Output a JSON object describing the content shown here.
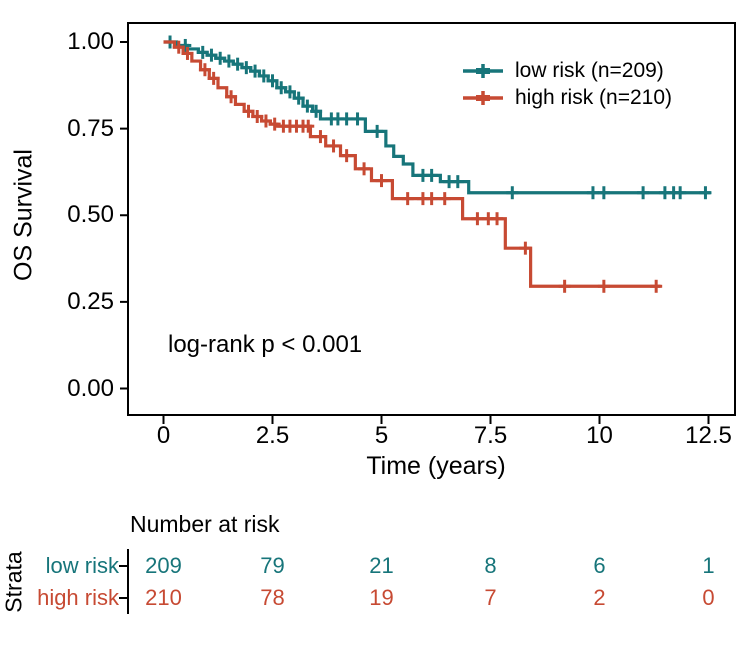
{
  "chart_data": {
    "type": "line",
    "subtype": "kaplan_meier_step",
    "title": "",
    "xlabel": "Time (years)",
    "ylabel": "OS Survival",
    "xlim": [
      0,
      12.5
    ],
    "ylim": [
      0,
      1
    ],
    "x_ticks": [
      0,
      2.5,
      5,
      7.5,
      10,
      12.5
    ],
    "x_tick_labels": [
      "0",
      "2.5",
      "5",
      "7.5",
      "10",
      "12.5"
    ],
    "y_ticks": [
      0,
      0.25,
      0.5,
      0.75,
      1
    ],
    "y_tick_labels": [
      "0.00",
      "0.25",
      "0.50",
      "0.75",
      "1.00"
    ],
    "grid": false,
    "legend_position": "inside-top-right",
    "annotation": "log-rank p < 0.001",
    "series": [
      {
        "name": "low risk (n=209)",
        "color": "#17757A",
        "end_time": 12.55,
        "steps": [
          [
            0,
            1.0
          ],
          [
            0.3,
            0.99
          ],
          [
            0.55,
            0.98
          ],
          [
            0.8,
            0.97
          ],
          [
            1.0,
            0.962
          ],
          [
            1.2,
            0.953
          ],
          [
            1.4,
            0.945
          ],
          [
            1.6,
            0.936
          ],
          [
            1.8,
            0.926
          ],
          [
            2.0,
            0.916
          ],
          [
            2.2,
            0.902
          ],
          [
            2.4,
            0.888
          ],
          [
            2.6,
            0.868
          ],
          [
            2.8,
            0.856
          ],
          [
            3.0,
            0.838
          ],
          [
            3.2,
            0.815
          ],
          [
            3.42,
            0.8
          ],
          [
            3.6,
            0.778
          ],
          [
            4.63,
            0.742
          ],
          [
            5.1,
            0.7
          ],
          [
            5.28,
            0.67
          ],
          [
            5.5,
            0.648
          ],
          [
            5.72,
            0.615
          ],
          [
            6.35,
            0.597
          ],
          [
            7.0,
            0.565
          ]
        ],
        "censors": [
          [
            0.15,
            1.0
          ],
          [
            0.5,
            0.99
          ],
          [
            0.9,
            0.97
          ],
          [
            1.1,
            0.962
          ],
          [
            1.3,
            0.953
          ],
          [
            1.5,
            0.945
          ],
          [
            1.7,
            0.936
          ],
          [
            1.9,
            0.926
          ],
          [
            2.1,
            0.916
          ],
          [
            2.3,
            0.902
          ],
          [
            2.5,
            0.888
          ],
          [
            2.7,
            0.868
          ],
          [
            2.9,
            0.856
          ],
          [
            3.1,
            0.838
          ],
          [
            3.3,
            0.815
          ],
          [
            3.5,
            0.8
          ],
          [
            3.85,
            0.778
          ],
          [
            4.0,
            0.778
          ],
          [
            4.2,
            0.778
          ],
          [
            4.45,
            0.778
          ],
          [
            4.9,
            0.742
          ],
          [
            5.95,
            0.615
          ],
          [
            6.15,
            0.615
          ],
          [
            6.55,
            0.597
          ],
          [
            6.75,
            0.597
          ],
          [
            8.0,
            0.565
          ],
          [
            9.85,
            0.565
          ],
          [
            10.1,
            0.565
          ],
          [
            11.0,
            0.565
          ],
          [
            11.5,
            0.565
          ],
          [
            11.7,
            0.565
          ],
          [
            11.85,
            0.565
          ],
          [
            12.43,
            0.565
          ]
        ]
      },
      {
        "name": "high risk (n=210)",
        "color": "#C74A33",
        "end_time": 11.4,
        "steps": [
          [
            0,
            1.0
          ],
          [
            0.25,
            0.985
          ],
          [
            0.45,
            0.967
          ],
          [
            0.65,
            0.945
          ],
          [
            0.85,
            0.92
          ],
          [
            1.05,
            0.895
          ],
          [
            1.25,
            0.868
          ],
          [
            1.45,
            0.842
          ],
          [
            1.65,
            0.82
          ],
          [
            1.85,
            0.8
          ],
          [
            2.05,
            0.785
          ],
          [
            2.25,
            0.772
          ],
          [
            2.45,
            0.763
          ],
          [
            2.6,
            0.757
          ],
          [
            3.37,
            0.727
          ],
          [
            3.72,
            0.7
          ],
          [
            4.06,
            0.672
          ],
          [
            4.4,
            0.634
          ],
          [
            4.77,
            0.6
          ],
          [
            5.25,
            0.548
          ],
          [
            6.86,
            0.49
          ],
          [
            7.84,
            0.405
          ],
          [
            8.42,
            0.295
          ]
        ],
        "censors": [
          [
            0.35,
            0.985
          ],
          [
            0.55,
            0.967
          ],
          [
            0.95,
            0.92
          ],
          [
            1.15,
            0.895
          ],
          [
            1.55,
            0.842
          ],
          [
            1.95,
            0.8
          ],
          [
            2.15,
            0.785
          ],
          [
            2.35,
            0.772
          ],
          [
            2.55,
            0.763
          ],
          [
            2.75,
            0.757
          ],
          [
            2.9,
            0.757
          ],
          [
            3.05,
            0.757
          ],
          [
            3.2,
            0.757
          ],
          [
            3.32,
            0.757
          ],
          [
            3.6,
            0.727
          ],
          [
            3.9,
            0.7
          ],
          [
            4.2,
            0.672
          ],
          [
            4.6,
            0.634
          ],
          [
            5.0,
            0.6
          ],
          [
            5.6,
            0.548
          ],
          [
            5.95,
            0.548
          ],
          [
            6.15,
            0.548
          ],
          [
            6.45,
            0.548
          ],
          [
            7.2,
            0.49
          ],
          [
            7.45,
            0.49
          ],
          [
            7.65,
            0.49
          ],
          [
            8.3,
            0.405
          ],
          [
            9.2,
            0.295
          ],
          [
            10.1,
            0.295
          ],
          [
            11.3,
            0.295
          ]
        ]
      }
    ],
    "risk_table": {
      "title": "Number at risk",
      "axis_label": "Strata",
      "times": [
        0,
        2.5,
        5,
        7.5,
        10,
        12.5
      ],
      "rows": [
        {
          "label": "low risk",
          "color": "#17757A",
          "counts": [
            209,
            79,
            21,
            8,
            6,
            1
          ]
        },
        {
          "label": "high risk",
          "color": "#C74A33",
          "counts": [
            210,
            78,
            19,
            7,
            2,
            0
          ]
        }
      ]
    }
  }
}
